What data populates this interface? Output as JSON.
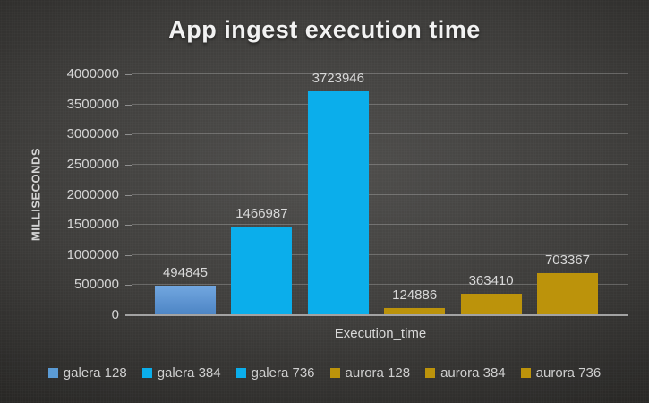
{
  "chart_data": {
    "type": "bar",
    "title": "App ingest execution time",
    "xlabel": "Execution_time",
    "ylabel": "MILLISECONDS",
    "ylim": [
      0,
      4000000
    ],
    "ytick_step": 500000,
    "grid": true,
    "data_labels": true,
    "legend_position": "bottom",
    "categories": [
      "Execution_time"
    ],
    "series": [
      {
        "name": "galera 128",
        "values": [
          494845
        ],
        "color": "#5B9BD5",
        "gradient": [
          "#72A7E0",
          "#4C84C4"
        ]
      },
      {
        "name": "galera 384",
        "values": [
          1466987
        ],
        "color": "#0BAEEB"
      },
      {
        "name": "galera 736",
        "values": [
          3723946
        ],
        "color": "#0BAEEB"
      },
      {
        "name": "aurora 128",
        "values": [
          124886
        ],
        "color": "#BC930B"
      },
      {
        "name": "aurora 384",
        "values": [
          363410
        ],
        "color": "#BC930B"
      },
      {
        "name": "aurora 736",
        "values": [
          703367
        ],
        "color": "#BC930B"
      }
    ],
    "colors": {
      "title_text": "#F2F2F2",
      "label_text": "#D9D9D9",
      "axis_line": "#A3A3A3",
      "background": "#3d3c3a"
    }
  }
}
